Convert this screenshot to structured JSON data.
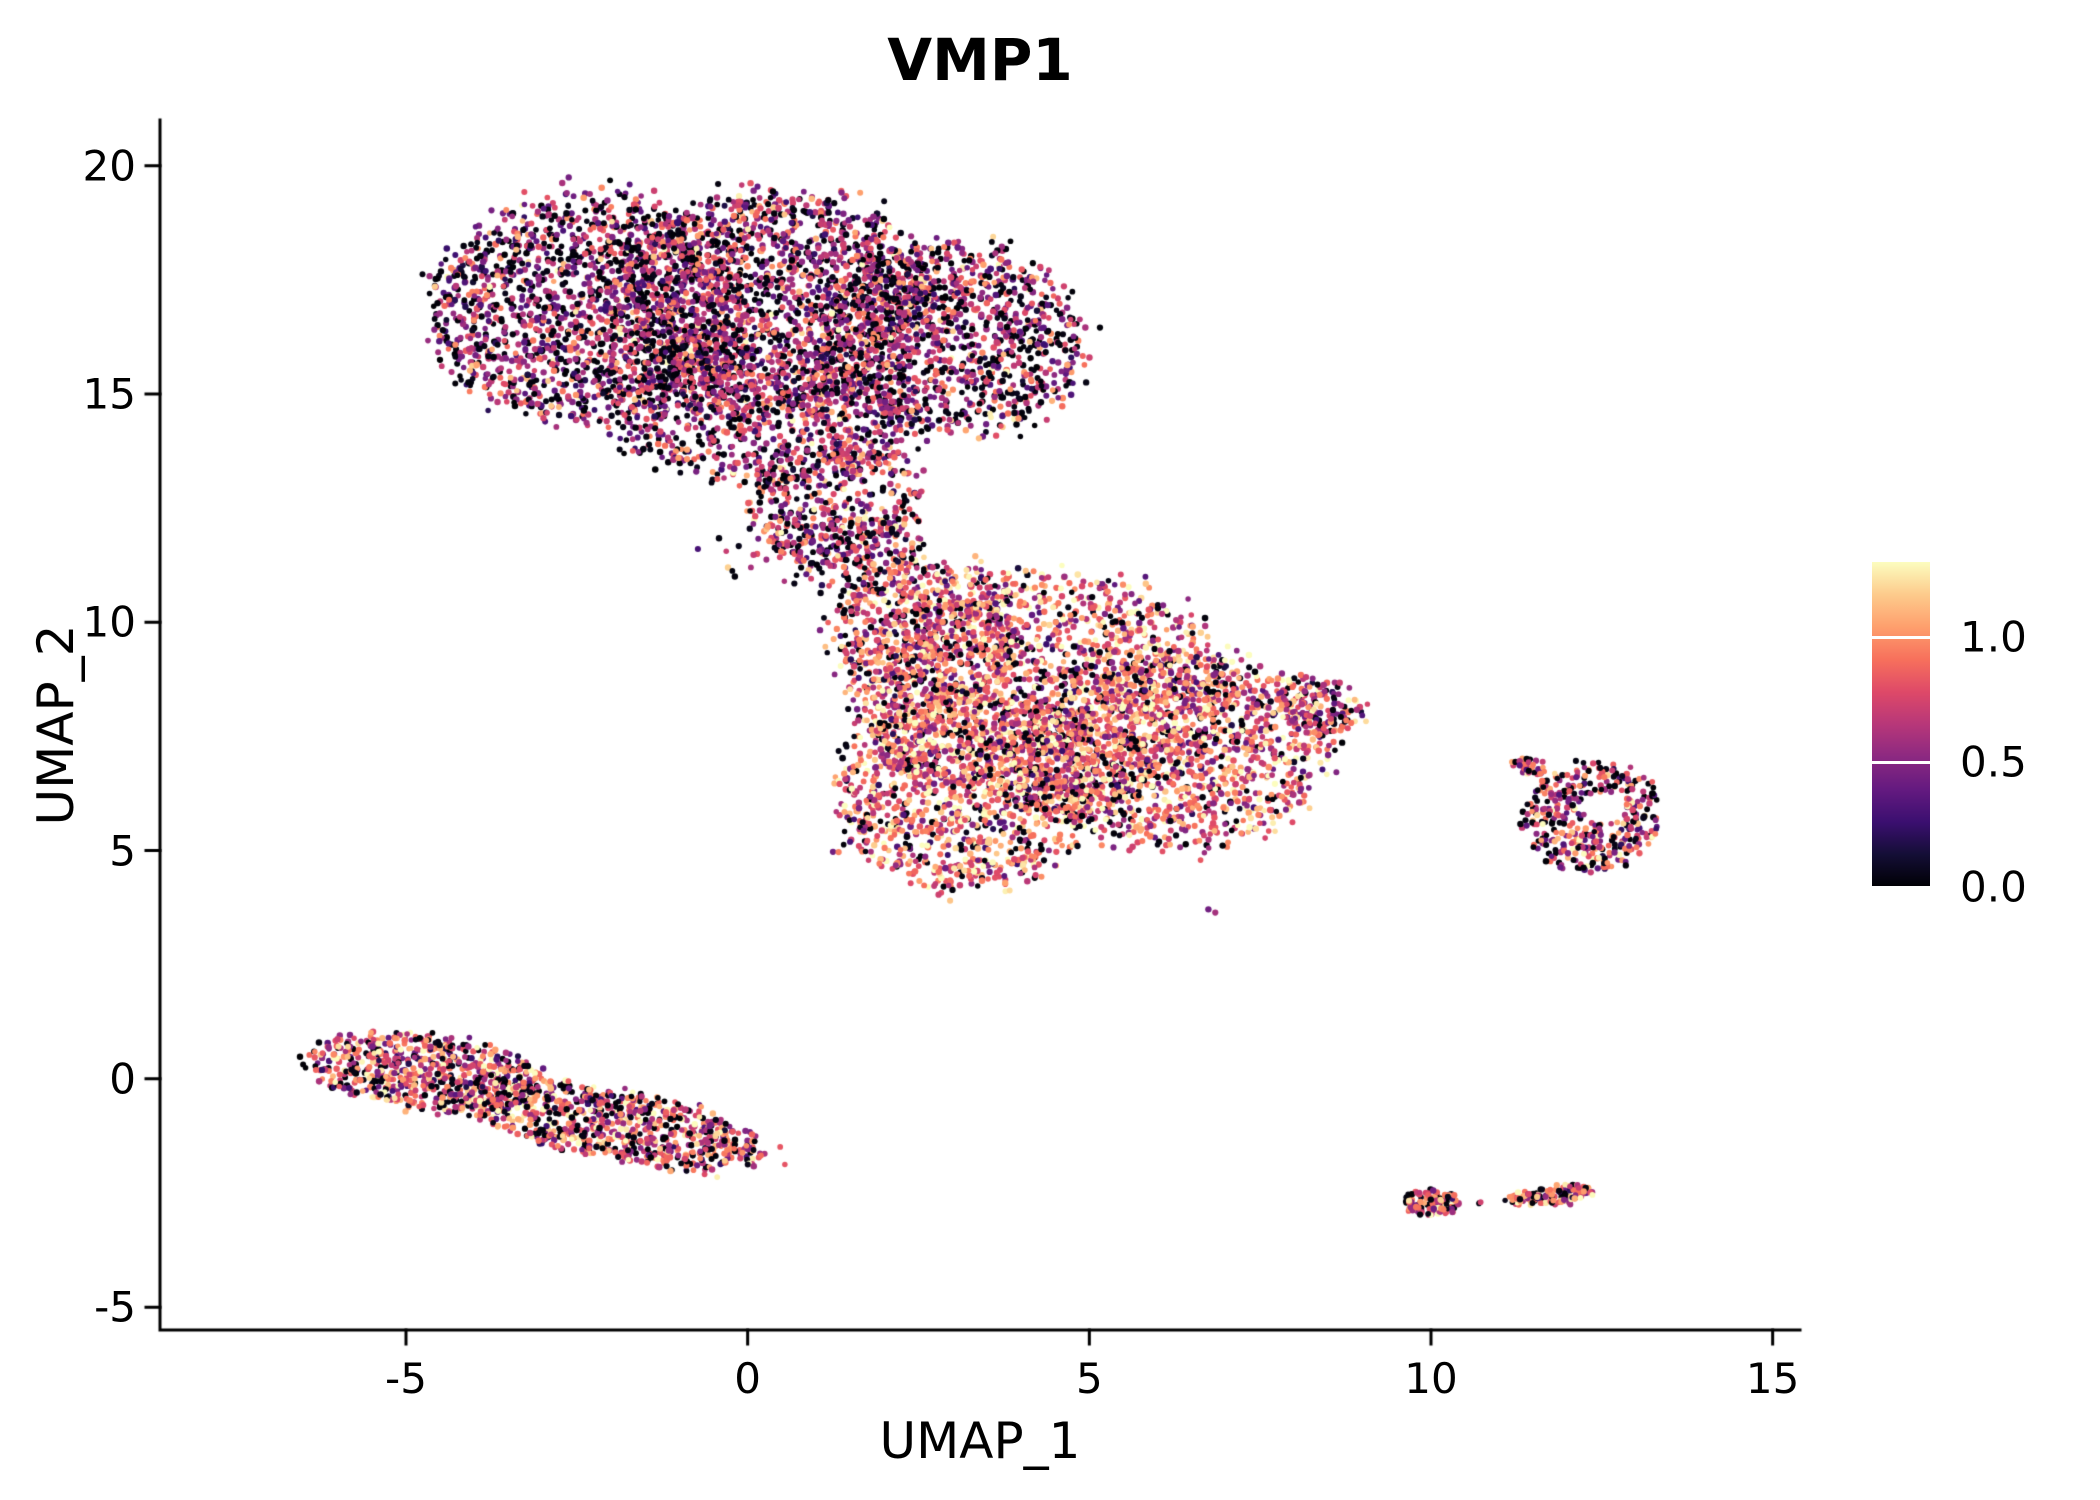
{
  "figure": {
    "background": "#FFFFFF"
  },
  "axis": {
    "color": "#000000",
    "tick_len": 14
  },
  "chart_data": {
    "type": "scatter",
    "subtype": "umap-feature-plot",
    "title": "VMP1",
    "xlabel": "UMAP_1",
    "ylabel": "UMAP_2",
    "xlim": [
      -8.6,
      15.4
    ],
    "ylim": [
      -5.5,
      21.0
    ],
    "x_ticks": {
      "values": [
        -5,
        0,
        5,
        10,
        15
      ],
      "labels": [
        "-5",
        "0",
        "5",
        "10",
        "15"
      ]
    },
    "y_ticks": {
      "values": [
        -5,
        0,
        5,
        10,
        15,
        20
      ],
      "labels": [
        "-5",
        "0",
        "5",
        "10",
        "15",
        "20"
      ]
    },
    "grid": false,
    "point_radius_px": 2.7,
    "seed": 42,
    "value_range": [
      0,
      1.3
    ],
    "colormap": {
      "name": "magma",
      "stops": [
        [
          0.0,
          "#000004"
        ],
        [
          0.1,
          "#140E36"
        ],
        [
          0.2,
          "#3B0F70"
        ],
        [
          0.3,
          "#641A80"
        ],
        [
          0.4,
          "#8C2981"
        ],
        [
          0.5,
          "#B73779"
        ],
        [
          0.6,
          "#DE4968"
        ],
        [
          0.7,
          "#F7705C"
        ],
        [
          0.8,
          "#FE9F6D"
        ],
        [
          0.9,
          "#FDCB8C"
        ],
        [
          1.0,
          "#FCFDBF"
        ]
      ]
    },
    "legend": {
      "position": "right",
      "tick_color": "#FFFFFF",
      "ticks": [
        {
          "value": 1.0,
          "label": "1.0"
        },
        {
          "value": 0.5,
          "label": "0.5"
        },
        {
          "value": 0.0,
          "label": "0.0"
        }
      ]
    },
    "clusters": [
      {
        "name": "upper-blob-left",
        "cx": -2.3,
        "cy": 16.9,
        "rx": 2.3,
        "ry": 2.5,
        "rot": -10,
        "n": 1700,
        "zero_frac": 0.32,
        "mean": 0.62,
        "sd": 0.28
      },
      {
        "name": "upper-blob-center",
        "cx": 0.4,
        "cy": 17.0,
        "rx": 2.4,
        "ry": 2.4,
        "rot": 0,
        "n": 1700,
        "zero_frac": 0.3,
        "mean": 0.65,
        "sd": 0.28
      },
      {
        "name": "upper-blob-right",
        "cx": 2.9,
        "cy": 16.2,
        "rx": 2.0,
        "ry": 2.1,
        "rot": 20,
        "n": 1200,
        "zero_frac": 0.3,
        "mean": 0.63,
        "sd": 0.28
      },
      {
        "name": "upper-blob-lower",
        "cx": 0.2,
        "cy": 14.4,
        "rx": 2.2,
        "ry": 1.4,
        "rot": -5,
        "n": 700,
        "zero_frac": 0.28,
        "mean": 0.66,
        "sd": 0.28
      },
      {
        "name": "upper-tail",
        "cx": 1.3,
        "cy": 12.6,
        "rx": 1.3,
        "ry": 1.4,
        "rot": 0,
        "n": 420,
        "zero_frac": 0.25,
        "mean": 0.68,
        "sd": 0.28
      },
      {
        "name": "bridge",
        "cx": 1.6,
        "cy": 11.5,
        "rx": 1.0,
        "ry": 0.9,
        "rot": 0,
        "n": 170,
        "zero_frac": 0.22,
        "mean": 0.7,
        "sd": 0.3
      },
      {
        "name": "bridge-sparse",
        "cx": 0.4,
        "cy": 11.5,
        "rx": 1.1,
        "ry": 0.7,
        "rot": 0,
        "n": 22,
        "zero_frac": 0.3,
        "mean": 0.6,
        "sd": 0.3
      },
      {
        "name": "central-blob-main",
        "cx": 4.3,
        "cy": 8.5,
        "rx": 2.7,
        "ry": 2.5,
        "rot": 0,
        "n": 1800,
        "zero_frac": 0.13,
        "mean": 0.88,
        "sd": 0.3
      },
      {
        "name": "central-blob-right",
        "cx": 6.2,
        "cy": 7.2,
        "rx": 2.3,
        "ry": 2.1,
        "rot": 10,
        "n": 1300,
        "zero_frac": 0.13,
        "mean": 0.85,
        "sd": 0.3
      },
      {
        "name": "central-blob-lower",
        "cx": 3.2,
        "cy": 6.3,
        "rx": 1.9,
        "ry": 2.2,
        "rot": 0,
        "n": 1100,
        "zero_frac": 0.14,
        "mean": 0.88,
        "sd": 0.3
      },
      {
        "name": "central-blob-upperleft",
        "cx": 2.6,
        "cy": 9.8,
        "rx": 1.4,
        "ry": 1.6,
        "rot": 0,
        "n": 600,
        "zero_frac": 0.15,
        "mean": 0.8,
        "sd": 0.3
      },
      {
        "name": "central-right-nub",
        "cx": 8.3,
        "cy": 8.2,
        "rx": 0.8,
        "ry": 0.6,
        "rot": -20,
        "n": 140,
        "zero_frac": 0.2,
        "mean": 0.7,
        "sd": 0.3
      },
      {
        "name": "central-outlier",
        "cx": 6.8,
        "cy": 3.7,
        "rx": 0.07,
        "ry": 0.07,
        "rot": 0,
        "n": 2,
        "zero_frac": 0.0,
        "mean": 0.6,
        "sd": 0.1
      },
      {
        "name": "right-island",
        "cx": 12.35,
        "cy": 5.75,
        "rx": 1.0,
        "ry": 1.2,
        "rot": -15,
        "n": 430,
        "zero_frac": 0.28,
        "mean": 0.75,
        "sd": 0.32,
        "hole": {
          "cx": 12.55,
          "cy": 5.95,
          "r": 0.32
        }
      },
      {
        "name": "right-island-wing",
        "cx": 11.45,
        "cy": 6.85,
        "rx": 0.3,
        "ry": 0.18,
        "rot": -20,
        "n": 34,
        "zero_frac": 0.25,
        "mean": 0.8,
        "sd": 0.3
      },
      {
        "name": "lower-left-strip-a",
        "cx": -4.7,
        "cy": 0.15,
        "rx": 1.75,
        "ry": 0.8,
        "rot": -12,
        "n": 650,
        "zero_frac": 0.2,
        "mean": 0.8,
        "sd": 0.32
      },
      {
        "name": "lower-left-strip-b",
        "cx": -2.0,
        "cy": -1.0,
        "rx": 2.3,
        "ry": 0.75,
        "rot": -17,
        "n": 800,
        "zero_frac": 0.2,
        "mean": 0.8,
        "sd": 0.32
      },
      {
        "name": "small-island-a",
        "cx": 10.0,
        "cy": -2.7,
        "rx": 0.42,
        "ry": 0.3,
        "rot": 0,
        "n": 110,
        "zero_frac": 0.25,
        "mean": 0.85,
        "sd": 0.3
      },
      {
        "name": "small-island-b",
        "cx": 11.35,
        "cy": -2.62,
        "rx": 0.25,
        "ry": 0.15,
        "rot": 10,
        "n": 40,
        "zero_frac": 0.25,
        "mean": 0.85,
        "sd": 0.3
      },
      {
        "name": "small-island-c",
        "cx": 11.9,
        "cy": -2.55,
        "rx": 0.45,
        "ry": 0.22,
        "rot": 8,
        "n": 90,
        "zero_frac": 0.25,
        "mean": 0.85,
        "sd": 0.3
      },
      {
        "name": "small-island-dot",
        "cx": 10.75,
        "cy": -2.72,
        "rx": 0.06,
        "ry": 0.05,
        "rot": 0,
        "n": 3,
        "zero_frac": 0.3,
        "mean": 0.7,
        "sd": 0.2
      }
    ]
  }
}
